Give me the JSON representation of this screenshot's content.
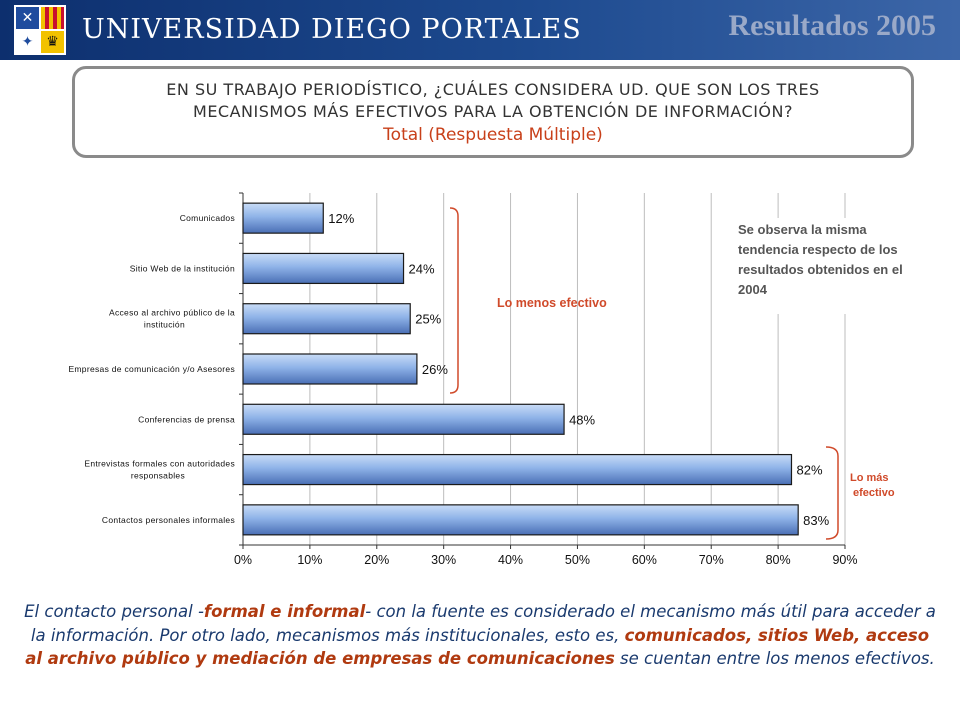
{
  "header": {
    "university": "UNIVERSIDAD DIEGO PORTALES",
    "title": "Resultados 2005"
  },
  "question": {
    "line1": "EN SU TRABAJO PERIODÍSTICO, ¿CUÁLES CONSIDERA UD. QUE SON LOS TRES",
    "line2": "MECANISMOS MÁS EFECTIVOS PARA LA OBTENCIÓN DE INFORMACIÓN?",
    "subtitle": "Total (Respuesta Múltiple)"
  },
  "note": "Se observa la misma\ntendencia respecto de los\nresultados obtenidos en el\n2004",
  "annotations": {
    "least": "Lo menos efectivo",
    "most_line1": "Lo más",
    "most_line2": "efectivo"
  },
  "conclusion": {
    "p1": "El contacto personal -",
    "hl1": "formal e informal",
    "p2": "- con la fuente es considerado el mecanismo más útil para acceder a la información. Por otro lado, mecanismos más institucionales, esto es, ",
    "hl2": "comunicados, sitios Web, acceso al archivo público y mediación de empresas de comunicaciones",
    "p3": " se cuentan entre los menos efectivos."
  },
  "colors": {
    "bar": "#8fb3e8",
    "bar_dark": "#4a6fb5",
    "accent": "#d04a2a",
    "header": "#1d4a8f"
  },
  "chart_data": {
    "type": "bar",
    "orientation": "horizontal",
    "categories": [
      "Comunicados",
      "Sitio Web de la institución",
      "Acceso al archivo público de la institución",
      "Empresas de comunicación y/o Asesores",
      "Conferencias de prensa",
      "Entrevistas formales con autoridades responsables",
      "Contactos personales informales"
    ],
    "values": [
      12,
      24,
      25,
      26,
      48,
      82,
      83
    ],
    "value_labels": [
      "12%",
      "24%",
      "25%",
      "26%",
      "48%",
      "82%",
      "83%"
    ],
    "xlim": [
      0,
      90
    ],
    "xticks": [
      "0%",
      "10%",
      "20%",
      "30%",
      "40%",
      "50%",
      "60%",
      "70%",
      "80%",
      "90%"
    ],
    "grid": true
  }
}
